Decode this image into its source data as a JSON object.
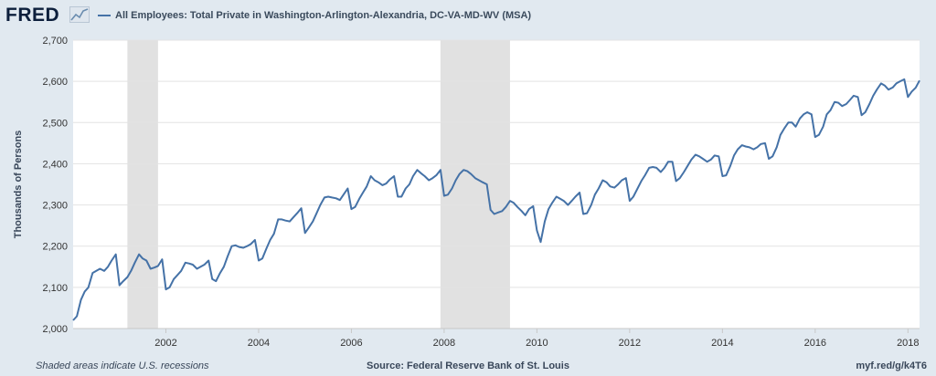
{
  "header": {
    "logo_text": "FRED",
    "logo_icon": "trend-line-icon",
    "series_title": "All Employees: Total Private in Washington-Arlington-Alexandria, DC-VA-MD-WV (MSA)"
  },
  "footer": {
    "note": "Shaded areas indicate U.S. recessions",
    "source": "Source: Federal Reserve Bank of St. Louis",
    "link": "myf.red/g/k4T6"
  },
  "colors": {
    "line": "#4572a7",
    "recession": "#e1e1e1",
    "background": "#e1e9f0"
  },
  "chart_data": {
    "type": "line",
    "title": "All Employees: Total Private in Washington-Arlington-Alexandria, DC-VA-MD-WV (MSA)",
    "ylabel": "Thousands of Persons",
    "xlabel": "",
    "ylim": [
      2000,
      2700
    ],
    "xlim": [
      2000.0,
      2018.25
    ],
    "y_ticks": [
      2000,
      2100,
      2200,
      2300,
      2400,
      2500,
      2600,
      2700
    ],
    "y_tick_labels": [
      "2,000",
      "2,100",
      "2,200",
      "2,300",
      "2,400",
      "2,500",
      "2,600",
      "2,700"
    ],
    "x_ticks": [
      2002,
      2004,
      2006,
      2008,
      2010,
      2012,
      2014,
      2016,
      2018
    ],
    "x_tick_labels": [
      "2002",
      "2004",
      "2006",
      "2008",
      "2010",
      "2012",
      "2014",
      "2016",
      "2018"
    ],
    "grid": true,
    "legend_position": "top-left",
    "recessions": [
      {
        "start": 2001.17,
        "end": 2001.83
      },
      {
        "start": 2007.92,
        "end": 2009.42
      }
    ],
    "series": [
      {
        "name": "All Employees: Total Private in Washington-Arlington-Alexandria, DC-VA-MD-WV (MSA)",
        "x": [
          2000.0,
          2000.08,
          2000.17,
          2000.25,
          2000.33,
          2000.42,
          2000.5,
          2000.58,
          2000.67,
          2000.75,
          2000.83,
          2000.92,
          2001.0,
          2001.08,
          2001.17,
          2001.25,
          2001.33,
          2001.42,
          2001.5,
          2001.58,
          2001.67,
          2001.75,
          2001.83,
          2001.92,
          2002.0,
          2002.08,
          2002.17,
          2002.25,
          2002.33,
          2002.42,
          2002.5,
          2002.58,
          2002.67,
          2002.75,
          2002.83,
          2002.92,
          2003.0,
          2003.08,
          2003.17,
          2003.25,
          2003.33,
          2003.42,
          2003.5,
          2003.58,
          2003.67,
          2003.75,
          2003.83,
          2003.92,
          2004.0,
          2004.08,
          2004.17,
          2004.25,
          2004.33,
          2004.42,
          2004.5,
          2004.58,
          2004.67,
          2004.75,
          2004.83,
          2004.92,
          2005.0,
          2005.08,
          2005.17,
          2005.25,
          2005.33,
          2005.42,
          2005.5,
          2005.58,
          2005.67,
          2005.75,
          2005.83,
          2005.92,
          2006.0,
          2006.08,
          2006.17,
          2006.25,
          2006.33,
          2006.42,
          2006.5,
          2006.58,
          2006.67,
          2006.75,
          2006.83,
          2006.92,
          2007.0,
          2007.08,
          2007.17,
          2007.25,
          2007.33,
          2007.42,
          2007.5,
          2007.58,
          2007.67,
          2007.75,
          2007.83,
          2007.92,
          2008.0,
          2008.08,
          2008.17,
          2008.25,
          2008.33,
          2008.42,
          2008.5,
          2008.58,
          2008.67,
          2008.75,
          2008.83,
          2008.92,
          2009.0,
          2009.08,
          2009.17,
          2009.25,
          2009.33,
          2009.42,
          2009.5,
          2009.58,
          2009.67,
          2009.75,
          2009.83,
          2009.92,
          2010.0,
          2010.08,
          2010.17,
          2010.25,
          2010.33,
          2010.42,
          2010.5,
          2010.58,
          2010.67,
          2010.75,
          2010.83,
          2010.92,
          2011.0,
          2011.08,
          2011.17,
          2011.25,
          2011.33,
          2011.42,
          2011.5,
          2011.58,
          2011.67,
          2011.75,
          2011.83,
          2011.92,
          2012.0,
          2012.08,
          2012.17,
          2012.25,
          2012.33,
          2012.42,
          2012.5,
          2012.58,
          2012.67,
          2012.75,
          2012.83,
          2012.92,
          2013.0,
          2013.08,
          2013.17,
          2013.25,
          2013.33,
          2013.42,
          2013.5,
          2013.58,
          2013.67,
          2013.75,
          2013.83,
          2013.92,
          2014.0,
          2014.08,
          2014.17,
          2014.25,
          2014.33,
          2014.42,
          2014.5,
          2014.58,
          2014.67,
          2014.75,
          2014.83,
          2014.92,
          2015.0,
          2015.08,
          2015.17,
          2015.25,
          2015.33,
          2015.42,
          2015.5,
          2015.58,
          2015.67,
          2015.75,
          2015.83,
          2015.92,
          2016.0,
          2016.08,
          2016.17,
          2016.25,
          2016.33,
          2016.42,
          2016.5,
          2016.58,
          2016.67,
          2016.75,
          2016.83,
          2016.92,
          2017.0,
          2017.08,
          2017.17,
          2017.25,
          2017.33,
          2017.42,
          2017.5,
          2017.58,
          2017.67,
          2017.75,
          2017.83,
          2017.92,
          2018.0,
          2018.08,
          2018.17,
          2018.25
        ],
        "values": [
          2020,
          2030,
          2070,
          2090,
          2100,
          2135,
          2140,
          2145,
          2140,
          2150,
          2165,
          2180,
          2105,
          2115,
          2125,
          2140,
          2160,
          2180,
          2170,
          2165,
          2145,
          2148,
          2152,
          2168,
          2095,
          2100,
          2120,
          2130,
          2140,
          2160,
          2158,
          2155,
          2145,
          2150,
          2155,
          2165,
          2120,
          2115,
          2135,
          2150,
          2175,
          2200,
          2202,
          2198,
          2196,
          2200,
          2205,
          2215,
          2165,
          2170,
          2195,
          2215,
          2230,
          2265,
          2265,
          2262,
          2260,
          2270,
          2280,
          2292,
          2232,
          2245,
          2260,
          2280,
          2300,
          2318,
          2320,
          2318,
          2316,
          2312,
          2325,
          2340,
          2290,
          2295,
          2315,
          2330,
          2345,
          2370,
          2360,
          2355,
          2348,
          2352,
          2362,
          2370,
          2320,
          2320,
          2340,
          2350,
          2370,
          2385,
          2377,
          2370,
          2360,
          2365,
          2372,
          2385,
          2322,
          2325,
          2340,
          2360,
          2375,
          2385,
          2382,
          2375,
          2365,
          2360,
          2355,
          2350,
          2288,
          2278,
          2282,
          2285,
          2295,
          2310,
          2305,
          2295,
          2285,
          2275,
          2290,
          2297,
          2238,
          2210,
          2260,
          2290,
          2305,
          2320,
          2315,
          2310,
          2300,
          2310,
          2320,
          2330,
          2278,
          2280,
          2300,
          2325,
          2340,
          2360,
          2355,
          2345,
          2342,
          2350,
          2360,
          2365,
          2310,
          2320,
          2340,
          2358,
          2372,
          2390,
          2392,
          2390,
          2380,
          2390,
          2405,
          2405,
          2358,
          2365,
          2380,
          2395,
          2410,
          2422,
          2418,
          2412,
          2405,
          2410,
          2420,
          2418,
          2370,
          2372,
          2395,
          2420,
          2435,
          2445,
          2442,
          2440,
          2435,
          2440,
          2448,
          2450,
          2412,
          2418,
          2440,
          2470,
          2485,
          2500,
          2500,
          2490,
          2510,
          2520,
          2525,
          2520,
          2465,
          2470,
          2490,
          2520,
          2530,
          2550,
          2548,
          2540,
          2545,
          2555,
          2565,
          2562,
          2518,
          2525,
          2545,
          2565,
          2580,
          2595,
          2590,
          2580,
          2585,
          2595,
          2600,
          2605,
          2562,
          2575,
          2585,
          2602
        ]
      }
    ]
  }
}
